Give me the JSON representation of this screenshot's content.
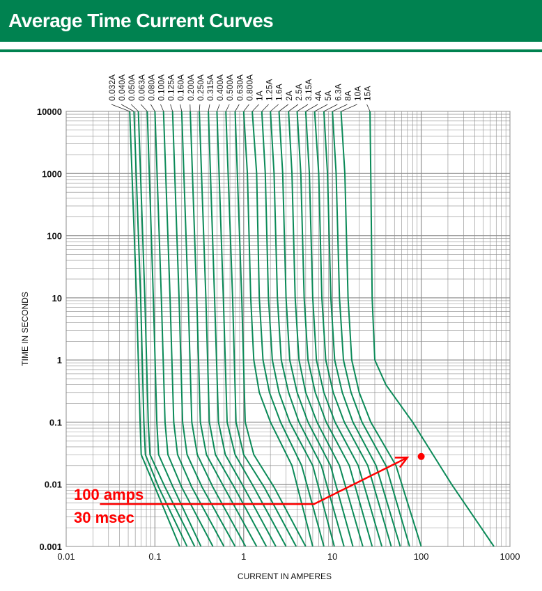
{
  "header": {
    "title": "Average Time Current Curves"
  },
  "colors": {
    "brand": "#008250",
    "curve": "#0b8a58",
    "annotation": "#ff0000",
    "grid": "#8c8c8c"
  },
  "chart_data": {
    "type": "line",
    "title": "",
    "xlabel": "CURRENT IN AMPERES",
    "ylabel": "TIME IN SECONDS",
    "x_scale": "log",
    "y_scale": "log",
    "xlim": [
      0.01,
      1000
    ],
    "ylim": [
      0.001,
      10000
    ],
    "grid": true,
    "x_ticks": [
      {
        "value": 0.01,
        "label": "0.01"
      },
      {
        "value": 0.1,
        "label": "0.1"
      },
      {
        "value": 1,
        "label": "1"
      },
      {
        "value": 10,
        "label": "10"
      },
      {
        "value": 100,
        "label": "100"
      },
      {
        "value": 1000,
        "label": "1000"
      }
    ],
    "y_ticks": [
      {
        "value": 10000,
        "label": "10000"
      },
      {
        "value": 1000,
        "label": "1000"
      },
      {
        "value": 100,
        "label": "100"
      },
      {
        "value": 10,
        "label": "10"
      },
      {
        "value": 1,
        "label": "1"
      },
      {
        "value": 0.1,
        "label": "0.1"
      },
      {
        "value": 0.01,
        "label": "0.01"
      },
      {
        "value": 0.001,
        "label": "0.001"
      }
    ],
    "series": [
      {
        "name": "0.032A",
        "points": [
          [
            0.052,
            10000
          ],
          [
            0.062,
            10
          ],
          [
            0.068,
            0.1
          ],
          [
            0.07,
            0.03
          ],
          [
            0.1,
            0.009
          ],
          [
            0.19,
            0.001
          ]
        ]
      },
      {
        "name": "0.040A",
        "points": [
          [
            0.058,
            10000
          ],
          [
            0.069,
            10
          ],
          [
            0.075,
            0.1
          ],
          [
            0.078,
            0.03
          ],
          [
            0.11,
            0.009
          ],
          [
            0.23,
            0.001
          ]
        ]
      },
      {
        "name": "0.050A",
        "points": [
          [
            0.065,
            10000
          ],
          [
            0.077,
            10
          ],
          [
            0.084,
            0.1
          ],
          [
            0.088,
            0.03
          ],
          [
            0.13,
            0.009
          ],
          [
            0.28,
            0.001
          ]
        ]
      },
      {
        "name": "0.063A",
        "points": [
          [
            0.082,
            10000
          ],
          [
            0.096,
            10
          ],
          [
            0.105,
            0.1
          ],
          [
            0.11,
            0.03
          ],
          [
            0.16,
            0.009
          ],
          [
            0.33,
            0.001
          ]
        ]
      },
      {
        "name": "0.080A",
        "points": [
          [
            0.1,
            10000
          ],
          [
            0.118,
            10
          ],
          [
            0.13,
            0.1
          ],
          [
            0.14,
            0.03
          ],
          [
            0.2,
            0.009
          ],
          [
            0.45,
            0.001
          ]
        ]
      },
      {
        "name": "0.100A",
        "points": [
          [
            0.125,
            10000
          ],
          [
            0.148,
            10
          ],
          [
            0.163,
            0.1
          ],
          [
            0.18,
            0.03
          ],
          [
            0.26,
            0.009
          ],
          [
            0.6,
            0.001
          ]
        ]
      },
      {
        "name": "0.125A",
        "points": [
          [
            0.158,
            10000
          ],
          [
            0.187,
            10
          ],
          [
            0.205,
            0.1
          ],
          [
            0.23,
            0.03
          ],
          [
            0.34,
            0.009
          ],
          [
            0.8,
            0.001
          ]
        ]
      },
      {
        "name": "0.160A",
        "points": [
          [
            0.2,
            10000
          ],
          [
            0.237,
            10
          ],
          [
            0.26,
            0.1
          ],
          [
            0.3,
            0.03
          ],
          [
            0.45,
            0.009
          ],
          [
            1.05,
            0.001
          ]
        ]
      },
      {
        "name": "0.200A",
        "points": [
          [
            0.25,
            10000
          ],
          [
            0.296,
            10
          ],
          [
            0.325,
            0.1
          ],
          [
            0.38,
            0.03
          ],
          [
            0.6,
            0.009
          ],
          [
            1.4,
            0.001
          ]
        ]
      },
      {
        "name": "0.250A",
        "points": [
          [
            0.316,
            10000
          ],
          [
            0.375,
            10
          ],
          [
            0.41,
            0.1
          ],
          [
            0.48,
            0.03
          ],
          [
            0.78,
            0.009
          ],
          [
            1.8,
            0.001
          ]
        ]
      },
      {
        "name": "0.315A",
        "points": [
          [
            0.4,
            10000
          ],
          [
            0.47,
            10
          ],
          [
            0.52,
            0.1
          ],
          [
            0.62,
            0.03
          ],
          [
            1.0,
            0.009
          ],
          [
            2.3,
            0.001
          ]
        ]
      },
      {
        "name": "0.400A",
        "points": [
          [
            0.5,
            10000
          ],
          [
            0.59,
            10
          ],
          [
            0.65,
            0.1
          ],
          [
            0.8,
            0.03
          ],
          [
            1.3,
            0.009
          ],
          [
            3.0,
            0.001
          ]
        ]
      },
      {
        "name": "0.500A",
        "points": [
          [
            0.63,
            10000
          ],
          [
            0.75,
            10
          ],
          [
            0.82,
            0.1
          ],
          [
            1.0,
            0.03
          ],
          [
            1.7,
            0.009
          ],
          [
            3.9,
            0.001
          ]
        ]
      },
      {
        "name": "0.630A",
        "points": [
          [
            0.8,
            10000
          ],
          [
            0.95,
            10
          ],
          [
            1.04,
            0.1
          ],
          [
            1.3,
            0.03
          ],
          [
            2.2,
            0.009
          ],
          [
            5.0,
            0.001
          ]
        ]
      },
      {
        "name": "0.800A",
        "points": [
          [
            1.0,
            10000
          ],
          [
            1.1,
            1000
          ],
          [
            1.2,
            10
          ],
          [
            1.3,
            1
          ],
          [
            1.5,
            0.3
          ],
          [
            2.0,
            0.1
          ],
          [
            3.5,
            0.02
          ],
          [
            6.0,
            0.001
          ]
        ]
      },
      {
        "name": "1A",
        "points": [
          [
            1.25,
            10000
          ],
          [
            1.4,
            1000
          ],
          [
            1.5,
            10
          ],
          [
            1.65,
            1
          ],
          [
            1.95,
            0.3
          ],
          [
            2.6,
            0.1
          ],
          [
            4.5,
            0.02
          ],
          [
            8.0,
            0.001
          ]
        ]
      },
      {
        "name": "1.25A",
        "points": [
          [
            1.6,
            10000
          ],
          [
            1.75,
            1000
          ],
          [
            1.9,
            10
          ],
          [
            2.1,
            1
          ],
          [
            2.5,
            0.3
          ],
          [
            3.3,
            0.1
          ],
          [
            6.0,
            0.02
          ],
          [
            10.5,
            0.001
          ]
        ]
      },
      {
        "name": "1.6A",
        "points": [
          [
            2.0,
            10000
          ],
          [
            2.2,
            1000
          ],
          [
            2.4,
            10
          ],
          [
            2.65,
            1
          ],
          [
            3.2,
            0.3
          ],
          [
            4.2,
            0.1
          ],
          [
            7.5,
            0.02
          ],
          [
            13.5,
            0.001
          ]
        ]
      },
      {
        "name": "2A",
        "points": [
          [
            2.5,
            10000
          ],
          [
            2.75,
            1000
          ],
          [
            3.0,
            10
          ],
          [
            3.3,
            1
          ],
          [
            4.0,
            0.3
          ],
          [
            5.3,
            0.1
          ],
          [
            9.5,
            0.02
          ],
          [
            17.0,
            0.001
          ]
        ]
      },
      {
        "name": "2.5A",
        "points": [
          [
            3.2,
            10000
          ],
          [
            3.5,
            1000
          ],
          [
            3.8,
            10
          ],
          [
            4.2,
            1
          ],
          [
            5.0,
            0.3
          ],
          [
            6.7,
            0.1
          ],
          [
            12.0,
            0.02
          ],
          [
            22.0,
            0.001
          ]
        ]
      },
      {
        "name": "3.15A",
        "points": [
          [
            4.0,
            10000
          ],
          [
            4.4,
            1000
          ],
          [
            4.8,
            10
          ],
          [
            5.3,
            1
          ],
          [
            6.4,
            0.3
          ],
          [
            8.5,
            0.1
          ],
          [
            15.5,
            0.02
          ],
          [
            28.0,
            0.001
          ]
        ]
      },
      {
        "name": "4A",
        "points": [
          [
            5.0,
            10000
          ],
          [
            5.5,
            1000
          ],
          [
            6.0,
            10
          ],
          [
            6.6,
            1
          ],
          [
            8.0,
            0.3
          ],
          [
            10.7,
            0.1
          ],
          [
            19.5,
            0.02
          ],
          [
            36.0,
            0.001
          ]
        ]
      },
      {
        "name": "5A",
        "points": [
          [
            6.3,
            10000
          ],
          [
            7.0,
            1000
          ],
          [
            7.6,
            10
          ],
          [
            8.4,
            1
          ],
          [
            10.2,
            0.3
          ],
          [
            13.6,
            0.1
          ],
          [
            25.0,
            0.02
          ],
          [
            46.0,
            0.001
          ]
        ]
      },
      {
        "name": "6.3A",
        "points": [
          [
            8.0,
            10000
          ],
          [
            8.8,
            1000
          ],
          [
            9.6,
            10
          ],
          [
            10.6,
            1
          ],
          [
            12.9,
            0.3
          ],
          [
            17.0,
            0.1
          ],
          [
            31.0,
            0.02
          ],
          [
            58.0,
            0.001
          ]
        ]
      },
      {
        "name": "8A",
        "points": [
          [
            10.0,
            10000
          ],
          [
            11.0,
            1000
          ],
          [
            12.0,
            10
          ],
          [
            13.3,
            1
          ],
          [
            16.2,
            0.3
          ],
          [
            21.5,
            0.1
          ],
          [
            40.0,
            0.02
          ],
          [
            74.0,
            0.001
          ]
        ]
      },
      {
        "name": "10A",
        "points": [
          [
            12.5,
            10000
          ],
          [
            13.8,
            1000
          ],
          [
            15.0,
            10
          ],
          [
            16.5,
            1
          ],
          [
            20.0,
            0.3
          ],
          [
            27.0,
            0.1
          ],
          [
            52.0,
            0.02
          ],
          [
            100.0,
            0.001
          ]
        ]
      },
      {
        "name": "15A",
        "points": [
          [
            26.5,
            10000
          ],
          [
            27.0,
            1000
          ],
          [
            27.5,
            100
          ],
          [
            28.0,
            10
          ],
          [
            30.0,
            1
          ],
          [
            40.0,
            0.4
          ],
          [
            80.0,
            0.1
          ],
          [
            220.0,
            0.01
          ],
          [
            660.0,
            0.001
          ]
        ]
      }
    ],
    "annotations": [
      {
        "text": "100 amps",
        "color": "#ff0000"
      },
      {
        "text": "30 msec",
        "color": "#ff0000"
      }
    ],
    "marker_point": {
      "x": 100,
      "y": 0.028,
      "color": "#ff0000"
    },
    "arrow": {
      "from": [
        0.024,
        0.0048
      ],
      "bend": [
        6.2,
        0.0048
      ],
      "to": [
        70,
        0.027
      ],
      "color": "#ff0000"
    }
  }
}
